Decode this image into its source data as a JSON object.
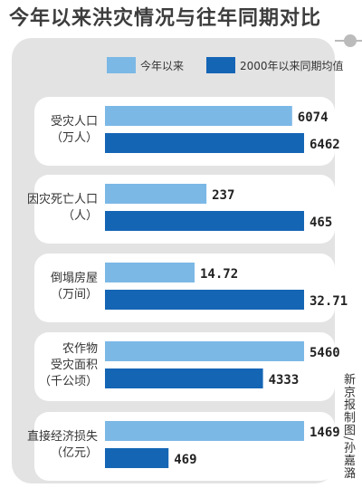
{
  "title": "今年以来洪灾情况与往年同期对比",
  "credit": "新京报制图/孙嘉潞",
  "colors": {
    "current": "#7bb8e6",
    "average": "#1565b5",
    "frame": "#e3e3e3"
  },
  "chart_data": {
    "type": "bar",
    "orientation": "horizontal",
    "legend_position": "top",
    "categories": [
      {
        "lines": [
          "受灾人口",
          "（万人）"
        ]
      },
      {
        "lines": [
          "因灾死亡人口",
          "（人）"
        ]
      },
      {
        "lines": [
          "倒塌房屋",
          "（万间）"
        ]
      },
      {
        "lines": [
          "农作物",
          "受灾面积",
          "（千公顷）"
        ]
      },
      {
        "lines": [
          "直接经济损失",
          "（亿元）"
        ]
      }
    ],
    "series": [
      {
        "name": "今年以来",
        "values": [
          6074,
          237,
          14.72,
          5460,
          1469
        ],
        "labels": [
          "6074",
          "237",
          "14.72",
          "5460",
          "1469"
        ]
      },
      {
        "name": "2000年以来同期均值",
        "values": [
          6462,
          465,
          32.71,
          4333,
          469
        ],
        "labels": [
          "6462",
          "465",
          "32.71",
          "4333",
          "469"
        ]
      }
    ]
  }
}
